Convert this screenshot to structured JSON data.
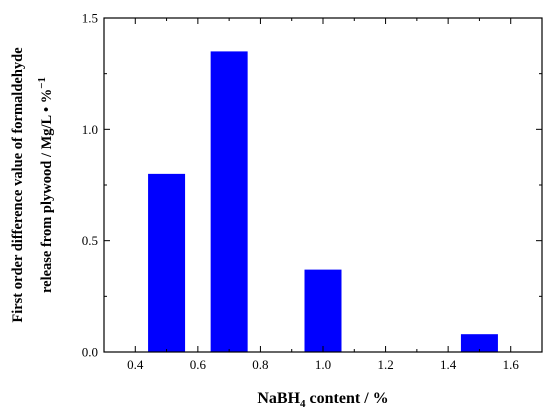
{
  "chart_data": {
    "type": "bar",
    "x": [
      0.5,
      0.7,
      1.0,
      1.5
    ],
    "values": [
      0.8,
      1.35,
      0.37,
      0.08
    ],
    "xlim": [
      0.3,
      1.7
    ],
    "ylim": [
      0,
      1.5
    ],
    "xticks": [
      "0.4",
      "0.6",
      "0.8",
      "1.0",
      "1.2",
      "1.4",
      "1.6"
    ],
    "yticks": [
      "0.0",
      "0.5",
      "1.0",
      "1.5"
    ],
    "xlabel": {
      "pre": "NaBH",
      "sub": "4",
      "post": " content / %"
    },
    "ylabel_line1": "First order difference value of formaldehyde",
    "ylabel_line2_main": "release from plywood / Mg/L • %",
    "ylabel_line2_sup": "−1",
    "bar_color": "#0000ff",
    "grid": false
  }
}
